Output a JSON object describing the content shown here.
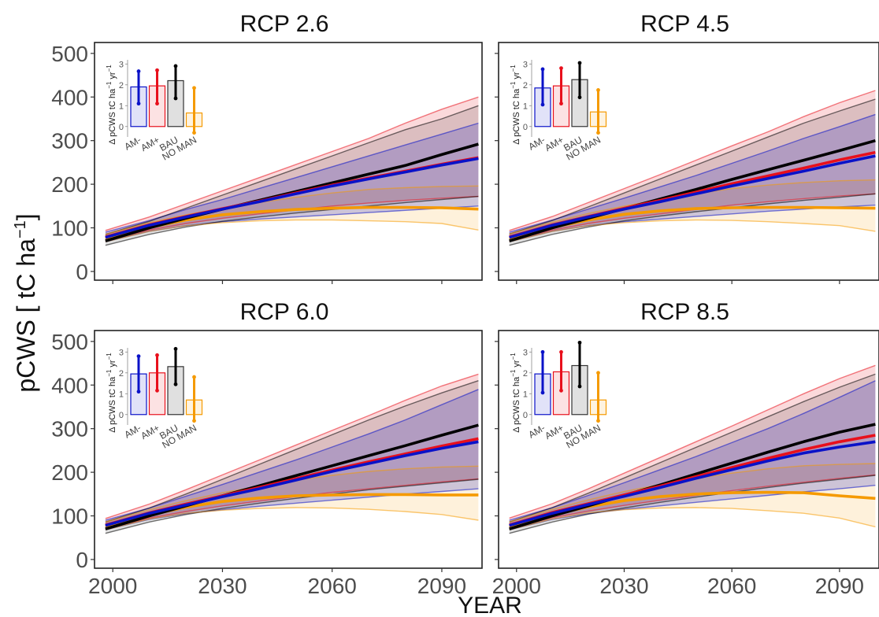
{
  "figure": {
    "xlabel": "YEAR",
    "ylabel": "pCWS [ tC ha",
    "ylabel_sup": "−1",
    "ylabel_close": "]"
  },
  "colors": {
    "AM-": "#0a12c8",
    "AM+": "#e8101c",
    "BAU": "#000000",
    "NO MAN": "#f59a00",
    "overlap_fill": "#7a3a7a"
  },
  "chart_data": [
    {
      "type": "line",
      "title": "RCP 2.6",
      "x_ticks": [
        2000,
        2030,
        2060,
        2090
      ],
      "y_ticks": [
        0,
        100,
        200,
        300,
        400,
        500
      ],
      "xlim": [
        1995,
        2101
      ],
      "ylim": [
        -20,
        525
      ],
      "x": [
        1998,
        2010,
        2020,
        2030,
        2040,
        2050,
        2060,
        2070,
        2080,
        2090,
        2100
      ],
      "series": [
        {
          "name": "AM-",
          "color": "#0a12c8",
          "values": [
            78,
            106,
            125,
            143,
            160,
            178,
            196,
            212,
            228,
            244,
            259
          ],
          "lower": [
            68,
            92,
            105,
            114,
            120,
            125,
            130,
            135,
            140,
            145,
            150
          ],
          "upper": [
            90,
            117,
            142,
            165,
            190,
            215,
            240,
            265,
            290,
            315,
            340
          ]
        },
        {
          "name": "AM+",
          "color": "#e8101c",
          "values": [
            79,
            107,
            126,
            144,
            161,
            180,
            198,
            214,
            230,
            246,
            261
          ],
          "lower": [
            70,
            95,
            110,
            122,
            132,
            141,
            150,
            157,
            163,
            168,
            172
          ],
          "upper": [
            94,
            125,
            155,
            185,
            215,
            245,
            275,
            305,
            340,
            372,
            400
          ]
        },
        {
          "name": "BAU",
          "color": "#000000",
          "values": [
            70,
            100,
            122,
            143,
            163,
            183,
            203,
            223,
            243,
            268,
            292
          ],
          "lower": [
            60,
            85,
            102,
            115,
            125,
            134,
            142,
            150,
            158,
            165,
            172
          ],
          "upper": [
            85,
            115,
            145,
            175,
            205,
            235,
            265,
            295,
            325,
            350,
            380
          ]
        },
        {
          "name": "NO MAN",
          "color": "#f59a00",
          "values": [
            75,
            101,
            118,
            130,
            137,
            142,
            145,
            147,
            147,
            146,
            143
          ],
          "lower": [
            68,
            92,
            105,
            112,
            116,
            118,
            118,
            116,
            114,
            110,
            95
          ],
          "upper": [
            85,
            112,
            130,
            145,
            158,
            170,
            180,
            188,
            192,
            195,
            196
          ]
        }
      ]
    },
    {
      "type": "line",
      "title": "RCP 4.5",
      "x_ticks": [
        2000,
        2030,
        2060,
        2090
      ],
      "y_ticks": [
        0,
        100,
        200,
        300,
        400,
        500
      ],
      "xlim": [
        1995,
        2101
      ],
      "ylim": [
        -20,
        525
      ],
      "x": [
        1998,
        2010,
        2020,
        2030,
        2040,
        2050,
        2060,
        2070,
        2080,
        2090,
        2100
      ],
      "series": [
        {
          "name": "AM-",
          "color": "#0a12c8",
          "values": [
            78,
            106,
            125,
            143,
            160,
            178,
            196,
            213,
            230,
            248,
            265
          ],
          "lower": [
            68,
            92,
            105,
            114,
            120,
            126,
            132,
            138,
            143,
            148,
            152
          ],
          "upper": [
            90,
            118,
            143,
            168,
            194,
            220,
            248,
            276,
            305,
            332,
            360
          ]
        },
        {
          "name": "AM+",
          "color": "#e8101c",
          "values": [
            79,
            107,
            126,
            145,
            163,
            182,
            201,
            219,
            237,
            256,
            273
          ],
          "lower": [
            70,
            95,
            110,
            122,
            132,
            142,
            152,
            160,
            167,
            173,
            178
          ],
          "upper": [
            94,
            126,
            158,
            190,
            222,
            255,
            288,
            320,
            355,
            387,
            415
          ]
        },
        {
          "name": "BAU",
          "color": "#000000",
          "values": [
            70,
            100,
            122,
            144,
            166,
            188,
            211,
            233,
            255,
            277,
            300
          ],
          "lower": [
            60,
            85,
            102,
            116,
            127,
            137,
            146,
            155,
            163,
            170,
            178
          ],
          "upper": [
            86,
            117,
            148,
            180,
            212,
            244,
            276,
            308,
            340,
            368,
            395
          ]
        },
        {
          "name": "NO MAN",
          "color": "#f59a00",
          "values": [
            75,
            101,
            118,
            131,
            139,
            144,
            146,
            147,
            147,
            146,
            145
          ],
          "lower": [
            68,
            92,
            105,
            112,
            116,
            118,
            117,
            114,
            110,
            105,
            92
          ],
          "upper": [
            86,
            113,
            133,
            150,
            165,
            178,
            190,
            198,
            204,
            208,
            210
          ]
        }
      ]
    },
    {
      "type": "line",
      "title": "RCP 6.0",
      "x_ticks": [
        2000,
        2030,
        2060,
        2090
      ],
      "y_ticks": [
        0,
        100,
        200,
        300,
        400,
        500
      ],
      "xlim": [
        1995,
        2101
      ],
      "ylim": [
        -20,
        525
      ],
      "x": [
        1998,
        2010,
        2020,
        2030,
        2040,
        2050,
        2060,
        2070,
        2080,
        2090,
        2100
      ],
      "series": [
        {
          "name": "AM-",
          "color": "#0a12c8",
          "values": [
            78,
            106,
            125,
            144,
            162,
            182,
            202,
            220,
            238,
            255,
            270
          ],
          "lower": [
            68,
            92,
            105,
            114,
            122,
            129,
            136,
            143,
            150,
            156,
            162
          ],
          "upper": [
            90,
            118,
            145,
            172,
            200,
            228,
            258,
            288,
            320,
            355,
            390
          ]
        },
        {
          "name": "AM+",
          "color": "#e8101c",
          "values": [
            79,
            107,
            127,
            146,
            165,
            185,
            205,
            224,
            242,
            260,
            277
          ],
          "lower": [
            70,
            95,
            110,
            123,
            134,
            144,
            154,
            162,
            170,
            178,
            185
          ],
          "upper": [
            94,
            127,
            160,
            194,
            228,
            262,
            296,
            330,
            365,
            398,
            425
          ]
        },
        {
          "name": "BAU",
          "color": "#000000",
          "values": [
            70,
            100,
            123,
            146,
            169,
            192,
            215,
            238,
            261,
            285,
            308
          ],
          "lower": [
            60,
            86,
            103,
            117,
            129,
            140,
            150,
            160,
            168,
            176,
            184
          ],
          "upper": [
            86,
            118,
            150,
            184,
            218,
            252,
            286,
            320,
            352,
            382,
            410
          ]
        },
        {
          "name": "NO MAN",
          "color": "#f59a00",
          "values": [
            75,
            102,
            120,
            133,
            141,
            146,
            148,
            149,
            149,
            148,
            148
          ],
          "lower": [
            68,
            93,
            106,
            113,
            117,
            119,
            118,
            115,
            110,
            103,
            90
          ],
          "upper": [
            86,
            114,
            135,
            153,
            168,
            182,
            193,
            202,
            208,
            212,
            214
          ]
        }
      ]
    },
    {
      "type": "line",
      "title": "RCP 8.5",
      "x_ticks": [
        2000,
        2030,
        2060,
        2090
      ],
      "y_ticks": [
        0,
        100,
        200,
        300,
        400,
        500
      ],
      "xlim": [
        1995,
        2101
      ],
      "ylim": [
        -20,
        525
      ],
      "x": [
        1998,
        2010,
        2020,
        2030,
        2040,
        2050,
        2060,
        2070,
        2080,
        2090,
        2100
      ],
      "series": [
        {
          "name": "AM-",
          "color": "#0a12c8",
          "values": [
            78,
            106,
            126,
            145,
            165,
            186,
            206,
            226,
            244,
            258,
            270
          ],
          "lower": [
            68,
            92,
            105,
            115,
            123,
            131,
            139,
            147,
            155,
            162,
            170
          ],
          "upper": [
            90,
            119,
            147,
            176,
            206,
            236,
            268,
            300,
            335,
            372,
            410
          ]
        },
        {
          "name": "AM+",
          "color": "#e8101c",
          "values": [
            79,
            108,
            128,
            148,
            168,
            190,
            211,
            232,
            252,
            270,
            285
          ],
          "lower": [
            70,
            96,
            111,
            124,
            136,
            147,
            158,
            168,
            177,
            186,
            194
          ],
          "upper": [
            95,
            128,
            162,
            198,
            234,
            270,
            306,
            343,
            380,
            415,
            445
          ]
        },
        {
          "name": "BAU",
          "color": "#000000",
          "values": [
            70,
            100,
            123,
            147,
            171,
            196,
            221,
            246,
            270,
            292,
            310
          ],
          "lower": [
            60,
            86,
            104,
            118,
            131,
            143,
            154,
            165,
            175,
            184,
            193
          ],
          "upper": [
            86,
            119,
            152,
            187,
            222,
            257,
            292,
            327,
            362,
            395,
            425
          ]
        },
        {
          "name": "NO MAN",
          "color": "#f59a00",
          "values": [
            75,
            102,
            121,
            135,
            144,
            150,
            153,
            154,
            153,
            146,
            140
          ],
          "lower": [
            68,
            93,
            107,
            114,
            118,
            119,
            117,
            112,
            106,
            95,
            75
          ],
          "upper": [
            86,
            115,
            137,
            156,
            172,
            186,
            198,
            208,
            215,
            218,
            220
          ]
        }
      ]
    }
  ],
  "inset": {
    "ylabel": "Δ pCWS tC ha",
    "ylabel_unit_a": "−1",
    "ylabel_mid": " yr",
    "ylabel_unit_b": "−1",
    "y_ticks": [
      0,
      1,
      2,
      3
    ],
    "categories": [
      "AM-",
      "AM+",
      "BAU",
      "NO MAN"
    ],
    "panels": [
      {
        "values": [
          1.9,
          1.95,
          2.2,
          0.65
        ],
        "err_low": [
          1.1,
          1.1,
          1.35,
          -0.3
        ],
        "err_high": [
          2.65,
          2.7,
          2.9,
          1.85
        ]
      },
      {
        "values": [
          1.85,
          1.95,
          2.25,
          0.7
        ],
        "err_low": [
          1.05,
          1.1,
          1.4,
          -0.3
        ],
        "err_high": [
          2.75,
          2.8,
          3.05,
          1.75
        ]
      },
      {
        "values": [
          1.95,
          2.0,
          2.3,
          0.7
        ],
        "err_low": [
          1.1,
          1.15,
          1.45,
          -0.3
        ],
        "err_high": [
          2.8,
          2.85,
          3.15,
          1.8
        ]
      },
      {
        "values": [
          1.95,
          2.05,
          2.35,
          0.7
        ],
        "err_low": [
          1.05,
          1.15,
          1.35,
          -0.3
        ],
        "err_high": [
          3.0,
          3.0,
          3.45,
          2.0
        ]
      }
    ]
  }
}
